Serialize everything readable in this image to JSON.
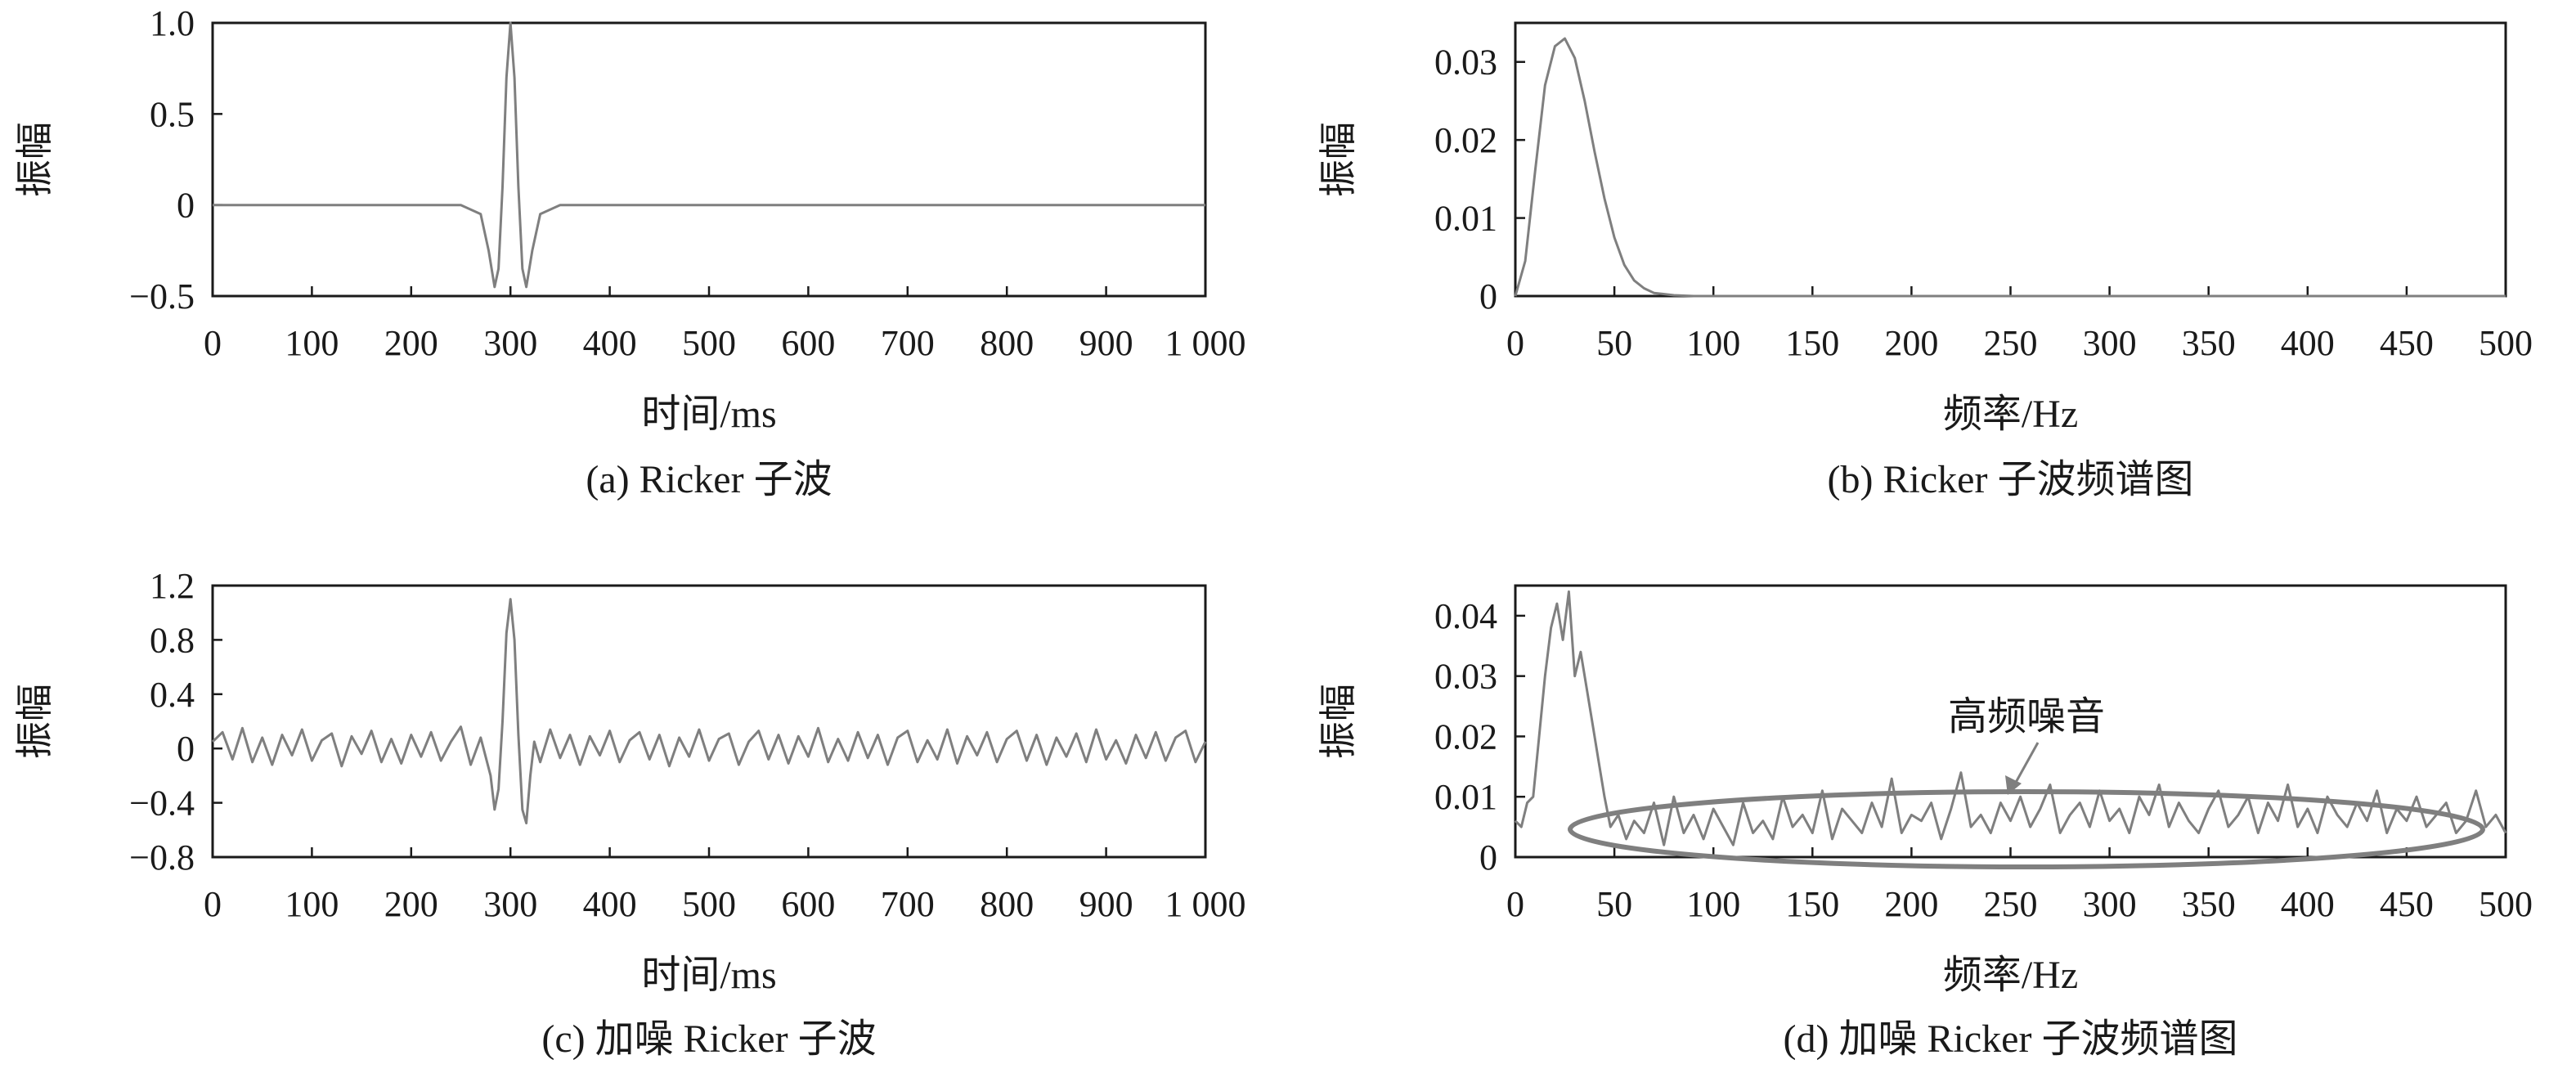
{
  "chart_data": [
    {
      "id": "a",
      "type": "line",
      "caption": "(a) Ricker 子波",
      "xlabel": "时间/ms",
      "ylabel": "振幅",
      "xlim": [
        0,
        1000
      ],
      "ylim": [
        -0.5,
        1.0
      ],
      "xticks": [
        0,
        100,
        200,
        300,
        400,
        500,
        600,
        700,
        800,
        900,
        1000
      ],
      "xtick_labels": [
        "0",
        "100",
        "200",
        "300",
        "400",
        "500",
        "600",
        "700",
        "800",
        "900",
        "1 000"
      ],
      "yticks": [
        -0.5,
        0,
        0.5,
        1.0
      ],
      "ytick_labels": [
        "−0.5",
        "0",
        "0.5",
        "1.0"
      ],
      "series": [
        {
          "x": [
            0,
            250,
            270,
            278,
            284,
            288,
            292,
            296,
            300,
            304,
            308,
            312,
            316,
            322,
            330,
            350,
            1000
          ],
          "y": [
            0,
            0,
            -0.05,
            -0.25,
            -0.45,
            -0.35,
            0.1,
            0.7,
            1.0,
            0.7,
            0.1,
            -0.35,
            -0.45,
            -0.25,
            -0.05,
            0,
            0
          ]
        }
      ]
    },
    {
      "id": "b",
      "type": "line",
      "caption": "(b) Ricker 子波频谱图",
      "xlabel": "频率/Hz",
      "ylabel": "振幅",
      "xlim": [
        0,
        500
      ],
      "ylim": [
        0,
        0.035
      ],
      "xticks": [
        0,
        50,
        100,
        150,
        200,
        250,
        300,
        350,
        400,
        450,
        500
      ],
      "xtick_labels": [
        "0",
        "50",
        "100",
        "150",
        "200",
        "250",
        "300",
        "350",
        "400",
        "450",
        "500"
      ],
      "yticks": [
        0,
        0.01,
        0.02,
        0.03
      ],
      "ytick_labels": [
        "0",
        "0.01",
        "0.02",
        "0.03"
      ],
      "series": [
        {
          "x": [
            0,
            5,
            10,
            15,
            20,
            25,
            30,
            35,
            40,
            45,
            50,
            55,
            60,
            65,
            70,
            80,
            90,
            100,
            500
          ],
          "y": [
            0,
            0.0045,
            0.016,
            0.027,
            0.032,
            0.033,
            0.0305,
            0.025,
            0.0185,
            0.0125,
            0.0075,
            0.004,
            0.002,
            0.001,
            0.0004,
            0.0001,
            0,
            0,
            0
          ]
        }
      ]
    },
    {
      "id": "c",
      "type": "line",
      "caption": "(c) 加噪 Ricker 子波",
      "xlabel": "时间/ms",
      "ylabel": "振幅",
      "xlim": [
        0,
        1000
      ],
      "ylim": [
        -0.8,
        1.2
      ],
      "xticks": [
        0,
        100,
        200,
        300,
        400,
        500,
        600,
        700,
        800,
        900,
        1000
      ],
      "xtick_labels": [
        "0",
        "100",
        "200",
        "300",
        "400",
        "500",
        "600",
        "700",
        "800",
        "900",
        "1 000"
      ],
      "yticks": [
        -0.8,
        -0.4,
        0,
        0.4,
        0.8,
        1.2
      ],
      "ytick_labels": [
        "−0.8",
        "−0.4",
        "0",
        "0.4",
        "0.8",
        "1.2"
      ],
      "series": [
        {
          "x": [
            0,
            10,
            20,
            30,
            40,
            50,
            60,
            70,
            80,
            90,
            100,
            110,
            120,
            130,
            140,
            150,
            160,
            170,
            180,
            190,
            200,
            210,
            220,
            230,
            240,
            250,
            260,
            270,
            280,
            284,
            288,
            292,
            296,
            300,
            304,
            308,
            312,
            316,
            320,
            324,
            330,
            340,
            350,
            360,
            370,
            380,
            390,
            400,
            410,
            420,
            430,
            440,
            450,
            460,
            470,
            480,
            490,
            500,
            510,
            520,
            530,
            540,
            550,
            560,
            570,
            580,
            590,
            600,
            610,
            620,
            630,
            640,
            650,
            660,
            670,
            680,
            690,
            700,
            710,
            720,
            730,
            740,
            750,
            760,
            770,
            780,
            790,
            800,
            810,
            820,
            830,
            840,
            850,
            860,
            870,
            880,
            890,
            900,
            910,
            920,
            930,
            940,
            950,
            960,
            970,
            980,
            990,
            1000
          ],
          "y": [
            0.05,
            0.12,
            -0.08,
            0.15,
            -0.1,
            0.08,
            -0.12,
            0.1,
            -0.05,
            0.14,
            -0.09,
            0.06,
            0.11,
            -0.13,
            0.09,
            -0.04,
            0.13,
            -0.1,
            0.07,
            -0.11,
            0.1,
            -0.06,
            0.12,
            -0.09,
            0.05,
            0.16,
            -0.12,
            0.08,
            -0.2,
            -0.45,
            -0.3,
            0.2,
            0.85,
            1.1,
            0.8,
            0.1,
            -0.45,
            -0.55,
            -0.2,
            0.05,
            -0.1,
            0.14,
            -0.07,
            0.1,
            -0.12,
            0.09,
            -0.05,
            0.13,
            -0.1,
            0.06,
            0.12,
            -0.08,
            0.1,
            -0.13,
            0.08,
            -0.06,
            0.14,
            -0.09,
            0.07,
            0.11,
            -0.12,
            0.05,
            0.13,
            -0.08,
            0.1,
            -0.11,
            0.09,
            -0.06,
            0.15,
            -0.1,
            0.07,
            -0.09,
            0.12,
            -0.07,
            0.1,
            -0.12,
            0.08,
            0.13,
            -0.1,
            0.06,
            -0.08,
            0.14,
            -0.11,
            0.09,
            -0.05,
            0.12,
            -0.1,
            0.07,
            0.13,
            -0.09,
            0.1,
            -0.12,
            0.08,
            -0.06,
            0.11,
            -0.1,
            0.14,
            -0.08,
            0.06,
            -0.11,
            0.1,
            -0.07,
            0.12,
            -0.09,
            0.08,
            0.13,
            -0.1,
            0.05
          ]
        }
      ]
    },
    {
      "id": "d",
      "type": "line",
      "caption": "(d) 加噪 Ricker 子波频谱图",
      "xlabel": "频率/Hz",
      "ylabel": "振幅",
      "xlim": [
        0,
        500
      ],
      "ylim": [
        0,
        0.045
      ],
      "xticks": [
        0,
        50,
        100,
        150,
        200,
        250,
        300,
        350,
        400,
        450,
        500
      ],
      "xtick_labels": [
        "0",
        "50",
        "100",
        "150",
        "200",
        "250",
        "300",
        "350",
        "400",
        "450",
        "500"
      ],
      "yticks": [
        0,
        0.01,
        0.02,
        0.03,
        0.04
      ],
      "ytick_labels": [
        "0",
        "0.01",
        "0.02",
        "0.03",
        "0.04"
      ],
      "annotation": "高频噪音",
      "series": [
        {
          "x": [
            0,
            3,
            6,
            9,
            12,
            15,
            18,
            21,
            24,
            27,
            30,
            33,
            36,
            39,
            42,
            45,
            48,
            52,
            56,
            60,
            65,
            70,
            75,
            80,
            85,
            90,
            95,
            100,
            105,
            110,
            115,
            120,
            125,
            130,
            135,
            140,
            145,
            150,
            155,
            160,
            165,
            170,
            175,
            180,
            185,
            190,
            195,
            200,
            205,
            210,
            215,
            220,
            225,
            230,
            235,
            240,
            245,
            250,
            255,
            260,
            265,
            270,
            275,
            280,
            285,
            290,
            295,
            300,
            305,
            310,
            315,
            320,
            325,
            330,
            335,
            340,
            345,
            350,
            355,
            360,
            365,
            370,
            375,
            380,
            385,
            390,
            395,
            400,
            405,
            410,
            415,
            420,
            425,
            430,
            435,
            440,
            445,
            450,
            455,
            460,
            465,
            470,
            475,
            480,
            485,
            490,
            495,
            500
          ],
          "y": [
            0.006,
            0.005,
            0.009,
            0.01,
            0.02,
            0.03,
            0.038,
            0.042,
            0.036,
            0.044,
            0.03,
            0.034,
            0.028,
            0.022,
            0.016,
            0.01,
            0.005,
            0.007,
            0.003,
            0.006,
            0.004,
            0.009,
            0.002,
            0.01,
            0.004,
            0.007,
            0.003,
            0.008,
            0.005,
            0.002,
            0.009,
            0.004,
            0.006,
            0.003,
            0.01,
            0.005,
            0.007,
            0.004,
            0.011,
            0.003,
            0.008,
            0.006,
            0.004,
            0.009,
            0.005,
            0.013,
            0.004,
            0.007,
            0.006,
            0.009,
            0.003,
            0.008,
            0.014,
            0.005,
            0.007,
            0.004,
            0.009,
            0.006,
            0.01,
            0.005,
            0.008,
            0.012,
            0.004,
            0.007,
            0.009,
            0.005,
            0.011,
            0.006,
            0.008,
            0.004,
            0.01,
            0.007,
            0.012,
            0.005,
            0.009,
            0.006,
            0.004,
            0.008,
            0.011,
            0.005,
            0.007,
            0.01,
            0.004,
            0.009,
            0.006,
            0.012,
            0.005,
            0.008,
            0.004,
            0.01,
            0.007,
            0.005,
            0.009,
            0.006,
            0.011,
            0.004,
            0.008,
            0.006,
            0.01,
            0.005,
            0.007,
            0.009,
            0.004,
            0.006,
            0.011,
            0.005,
            0.007,
            0.004
          ]
        }
      ]
    }
  ]
}
